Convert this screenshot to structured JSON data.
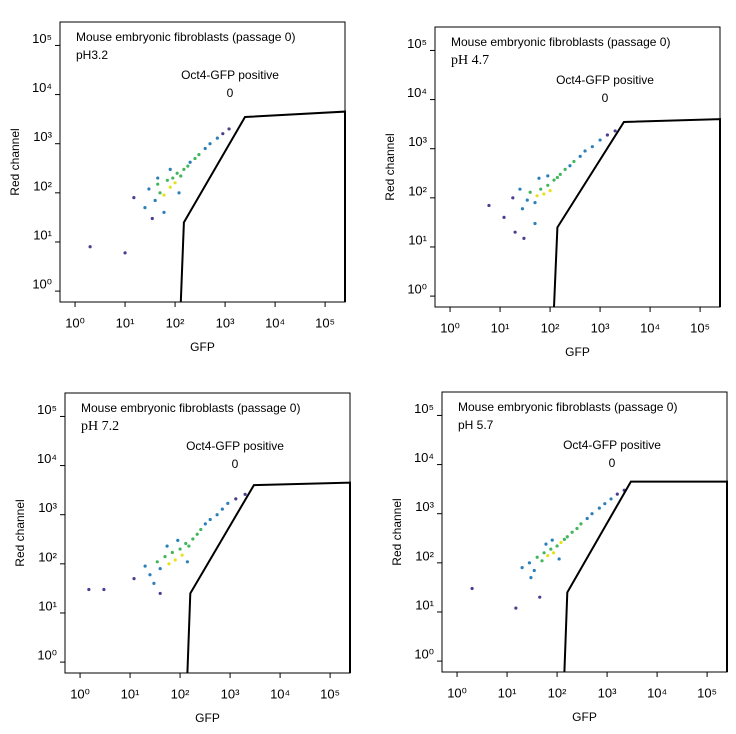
{
  "chart_data": [
    {
      "type": "scatter",
      "title": "Mouse embryonic fibroblasts (passage 0)",
      "subtitle": "pH3.2",
      "xlabel": "GFP",
      "ylabel": "Red channel",
      "log_x": true,
      "log_y": true,
      "xlim": [
        0.5,
        250000
      ],
      "ylim": [
        0.6,
        300000
      ],
      "xticks": [
        {
          "value": 1,
          "label": "10⁰"
        },
        {
          "value": 10,
          "label": "10¹"
        },
        {
          "value": 100,
          "label": "10²"
        },
        {
          "value": 1000,
          "label": "10³"
        },
        {
          "value": 10000,
          "label": "10⁴"
        },
        {
          "value": 100000,
          "label": "10⁵"
        }
      ],
      "yticks": [
        {
          "value": 1,
          "label": "10⁰"
        },
        {
          "value": 10,
          "label": "10¹"
        },
        {
          "value": 100,
          "label": "10²"
        },
        {
          "value": 1000,
          "label": "10³"
        },
        {
          "value": 10000,
          "label": "10⁴"
        },
        {
          "value": 100000,
          "label": "10⁵"
        }
      ],
      "gate": {
        "label": "Oct4-GFP positive",
        "count": 0,
        "x": [
          130,
          150,
          2500,
          250000,
          250000
        ],
        "y": [
          0.6,
          25,
          3500,
          4500,
          0.6
        ]
      },
      "x": [
        2,
        10,
        15,
        25,
        30,
        40,
        45,
        50,
        60,
        70,
        80,
        90,
        100,
        110,
        130,
        150,
        180,
        200,
        250,
        300,
        400,
        500,
        700,
        900,
        1200,
        60,
        35,
        45,
        80,
        120
      ],
      "y": [
        8,
        6,
        80,
        50,
        120,
        70,
        150,
        100,
        90,
        180,
        130,
        200,
        160,
        250,
        220,
        300,
        350,
        420,
        500,
        600,
        800,
        1000,
        1300,
        1600,
        2000,
        40,
        30,
        200,
        300,
        100
      ],
      "colors": [
        "#4b3d8f",
        "#4b3d8f",
        "#4b3d8f",
        "#2c7fb8",
        "#2c7fb8",
        "#2c7fb8",
        "#41b65c",
        "#41b65c",
        "#e6e11e",
        "#41b65c",
        "#e6e11e",
        "#41b65c",
        "#e6e11e",
        "#41b65c",
        "#41b65c",
        "#41b65c",
        "#41b65c",
        "#2c7fb8",
        "#41b65c",
        "#41b65c",
        "#2c7fb8",
        "#2c7fb8",
        "#2c7fb8",
        "#4b3d8f",
        "#4b3d8f",
        "#2c7fb8",
        "#4b3d8f",
        "#2c7fb8",
        "#2c7fb8",
        "#2c7fb8"
      ]
    },
    {
      "type": "scatter",
      "title": "Mouse embryonic fibroblasts (passage 0)",
      "subtitle": "pH 4.7",
      "xlabel": "GFP",
      "ylabel": "Red channel",
      "log_x": true,
      "log_y": true,
      "xlim": [
        0.5,
        250000
      ],
      "ylim": [
        0.6,
        300000
      ],
      "xticks": [
        {
          "value": 1,
          "label": "10⁰"
        },
        {
          "value": 10,
          "label": "10¹"
        },
        {
          "value": 100,
          "label": "10²"
        },
        {
          "value": 1000,
          "label": "10³"
        },
        {
          "value": 10000,
          "label": "10⁴"
        },
        {
          "value": 100000,
          "label": "10⁵"
        }
      ],
      "yticks": [
        {
          "value": 1,
          "label": "10⁰"
        },
        {
          "value": 10,
          "label": "10¹"
        },
        {
          "value": 100,
          "label": "10²"
        },
        {
          "value": 1000,
          "label": "10³"
        },
        {
          "value": 10000,
          "label": "10⁴"
        },
        {
          "value": 100000,
          "label": "10⁵"
        }
      ],
      "gate": {
        "label": "Oct4-GFP positive",
        "count": 0,
        "x": [
          120,
          140,
          3000,
          250000,
          250000
        ],
        "y": [
          0.6,
          25,
          3500,
          4000,
          0.6
        ]
      },
      "x": [
        6,
        12,
        18,
        20,
        28,
        35,
        40,
        50,
        55,
        65,
        75,
        90,
        100,
        120,
        140,
        160,
        200,
        250,
        300,
        400,
        500,
        700,
        1000,
        1400,
        2000,
        50,
        30,
        60,
        90,
        25
      ],
      "y": [
        70,
        40,
        100,
        20,
        60,
        90,
        130,
        80,
        110,
        150,
        120,
        180,
        140,
        230,
        260,
        300,
        380,
        450,
        550,
        700,
        900,
        1100,
        1500,
        1900,
        2300,
        30,
        15,
        250,
        280,
        150
      ],
      "colors": [
        "#4b3d8f",
        "#4b3d8f",
        "#4b3d8f",
        "#4b3d8f",
        "#2c7fb8",
        "#2c7fb8",
        "#41b65c",
        "#2c7fb8",
        "#e6e11e",
        "#41b65c",
        "#e6e11e",
        "#41b65c",
        "#e6e11e",
        "#41b65c",
        "#41b65c",
        "#41b65c",
        "#41b65c",
        "#2c7fb8",
        "#41b65c",
        "#2c7fb8",
        "#2c7fb8",
        "#2c7fb8",
        "#2c7fb8",
        "#4b3d8f",
        "#4b3d8f",
        "#2c7fb8",
        "#4b3d8f",
        "#2c7fb8",
        "#2c7fb8",
        "#2c7fb8"
      ]
    },
    {
      "type": "scatter",
      "title": "Mouse embryonic fibroblasts (passage 0)",
      "subtitle": "pH 7.2",
      "xlabel": "GFP",
      "ylabel": "Red channel",
      "log_x": true,
      "log_y": true,
      "xlim": [
        0.5,
        250000
      ],
      "ylim": [
        0.6,
        300000
      ],
      "xticks": [
        {
          "value": 1,
          "label": "10⁰"
        },
        {
          "value": 10,
          "label": "10¹"
        },
        {
          "value": 100,
          "label": "10²"
        },
        {
          "value": 1000,
          "label": "10³"
        },
        {
          "value": 10000,
          "label": "10⁴"
        },
        {
          "value": 100000,
          "label": "10⁵"
        }
      ],
      "yticks": [
        {
          "value": 1,
          "label": "10⁰"
        },
        {
          "value": 10,
          "label": "10¹"
        },
        {
          "value": 100,
          "label": "10²"
        },
        {
          "value": 1000,
          "label": "10³"
        },
        {
          "value": 10000,
          "label": "10⁴"
        },
        {
          "value": 100000,
          "label": "10⁵"
        }
      ],
      "gate": {
        "label": "Oct4-GFP positive",
        "count": 0,
        "x": [
          140,
          160,
          3000,
          250000,
          250000
        ],
        "y": [
          0.6,
          25,
          4000,
          4500,
          0.6
        ]
      },
      "x": [
        1.5,
        3,
        12,
        20,
        25,
        35,
        40,
        50,
        60,
        70,
        80,
        100,
        110,
        130,
        150,
        180,
        220,
        260,
        320,
        400,
        550,
        700,
        900,
        1300,
        2000,
        40,
        30,
        55,
        90,
        140
      ],
      "y": [
        30,
        30,
        50,
        90,
        60,
        110,
        80,
        140,
        100,
        170,
        120,
        200,
        150,
        260,
        230,
        320,
        400,
        500,
        650,
        800,
        1000,
        1300,
        1700,
        2100,
        2600,
        25,
        40,
        230,
        300,
        110
      ],
      "colors": [
        "#4b3d8f",
        "#4b3d8f",
        "#4b3d8f",
        "#2c7fb8",
        "#2c7fb8",
        "#41b65c",
        "#2c7fb8",
        "#41b65c",
        "#e6e11e",
        "#41b65c",
        "#e6e11e",
        "#41b65c",
        "#e6e11e",
        "#41b65c",
        "#41b65c",
        "#41b65c",
        "#41b65c",
        "#41b65c",
        "#2c7fb8",
        "#2c7fb8",
        "#2c7fb8",
        "#2c7fb8",
        "#2c7fb8",
        "#4b3d8f",
        "#4b3d8f",
        "#4b3d8f",
        "#2c7fb8",
        "#2c7fb8",
        "#2c7fb8",
        "#2c7fb8"
      ]
    },
    {
      "type": "scatter",
      "title": "Mouse embryonic fibroblasts (passage 0)",
      "subtitle": "pH 5.7",
      "xlabel": "GFP",
      "ylabel": "Red channel",
      "log_x": true,
      "log_y": true,
      "xlim": [
        0.5,
        250000
      ],
      "ylim": [
        0.6,
        300000
      ],
      "xticks": [
        {
          "value": 1,
          "label": "10⁰"
        },
        {
          "value": 10,
          "label": "10¹"
        },
        {
          "value": 100,
          "label": "10²"
        },
        {
          "value": 1000,
          "label": "10³"
        },
        {
          "value": 10000,
          "label": "10⁴"
        },
        {
          "value": 100000,
          "label": "10⁵"
        }
      ],
      "yticks": [
        {
          "value": 1,
          "label": "10⁰"
        },
        {
          "value": 10,
          "label": "10¹"
        },
        {
          "value": 100,
          "label": "10²"
        },
        {
          "value": 1000,
          "label": "10³"
        },
        {
          "value": 10000,
          "label": "10⁴"
        },
        {
          "value": 100000,
          "label": "10⁵"
        }
      ],
      "gate": {
        "label": "Oct4-GFP positive",
        "count": 0,
        "x": [
          140,
          160,
          3000,
          250000,
          250000
        ],
        "y": [
          0.6,
          25,
          4500,
          4500,
          0.6
        ]
      },
      "x": [
        2,
        15,
        20,
        28,
        35,
        40,
        50,
        55,
        65,
        75,
        85,
        100,
        120,
        140,
        160,
        200,
        250,
        300,
        400,
        500,
        700,
        900,
        1200,
        1600,
        2200,
        45,
        30,
        60,
        80,
        110
      ],
      "y": [
        30,
        12,
        80,
        100,
        70,
        130,
        110,
        160,
        140,
        190,
        160,
        220,
        260,
        300,
        340,
        420,
        500,
        620,
        800,
        1000,
        1300,
        1600,
        2000,
        2500,
        3000,
        20,
        50,
        240,
        290,
        120
      ],
      "colors": [
        "#4b3d8f",
        "#4b3d8f",
        "#2c7fb8",
        "#2c7fb8",
        "#2c7fb8",
        "#41b65c",
        "#41b65c",
        "#41b65c",
        "#e6e11e",
        "#41b65c",
        "#e6e11e",
        "#41b65c",
        "#e6e11e",
        "#41b65c",
        "#41b65c",
        "#41b65c",
        "#41b65c",
        "#41b65c",
        "#2c7fb8",
        "#2c7fb8",
        "#2c7fb8",
        "#2c7fb8",
        "#2c7fb8",
        "#4b3d8f",
        "#4b3d8f",
        "#4b3d8f",
        "#2c7fb8",
        "#2c7fb8",
        "#2c7fb8",
        "#2c7fb8"
      ]
    }
  ]
}
